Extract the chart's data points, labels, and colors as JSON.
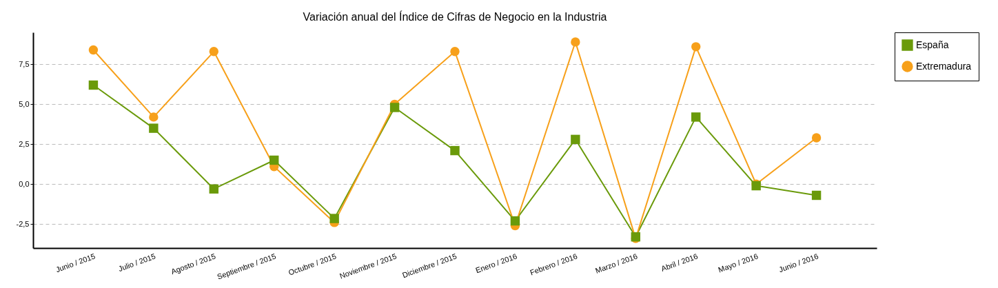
{
  "chart_data": {
    "type": "line",
    "title": "Variación anual del Índice de Cifras de Negocio en la Industria",
    "categories": [
      "Junio / 2015",
      "Julio / 2015",
      "Agosto / 2015",
      "Septiembre / 2015",
      "Octubre / 2015",
      "Noviembre / 2015",
      "Diciembre / 2015",
      "Enero / 2016",
      "Febrero / 2016",
      "Marzo / 2016",
      "Abril / 2016",
      "Mayo / 2016",
      "Junio / 2016"
    ],
    "series": [
      {
        "name": "España",
        "color": "#6a9a0a",
        "marker": "square",
        "values": [
          6.2,
          3.5,
          -0.3,
          1.5,
          -2.15,
          4.8,
          2.1,
          -2.3,
          2.8,
          -3.3,
          4.2,
          -0.1,
          -0.7
        ]
      },
      {
        "name": "Extremadura",
        "color": "#f7a01a",
        "marker": "circle",
        "values": [
          8.4,
          4.2,
          8.3,
          1.1,
          -2.4,
          5.0,
          8.3,
          -2.6,
          8.9,
          -3.4,
          8.6,
          0.0,
          2.9
        ]
      }
    ],
    "ylim": [
      -4,
      9.5
    ],
    "yticks": [
      {
        "value": -2.5,
        "label": "-2,5"
      },
      {
        "value": 0,
        "label": "0,0"
      },
      {
        "value": 2.5,
        "label": "2,5"
      },
      {
        "value": 5,
        "label": "5,0"
      },
      {
        "value": 7.5,
        "label": "7,5"
      }
    ],
    "grid": "y",
    "legend": "right",
    "line_style": "solid"
  }
}
